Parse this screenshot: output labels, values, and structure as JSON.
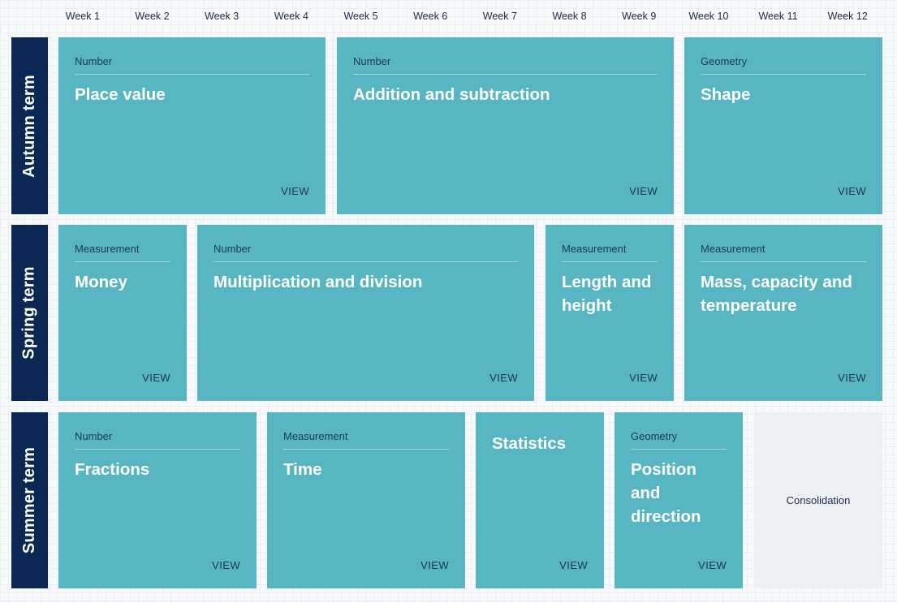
{
  "weeks": [
    "Week 1",
    "Week 2",
    "Week 3",
    "Week 4",
    "Week 5",
    "Week 6",
    "Week 7",
    "Week 8",
    "Week 9",
    "Week 10",
    "Week 11",
    "Week 12"
  ],
  "terms": [
    "Autumn term",
    "Spring term",
    "Summer term"
  ],
  "view_label": "VIEW",
  "autumn": [
    {
      "category": "Number",
      "title": "Place value"
    },
    {
      "category": "Number",
      "title": "Addition and subtraction"
    },
    {
      "category": "Geometry",
      "title": "Shape"
    }
  ],
  "spring": [
    {
      "category": "Measurement",
      "title": "Money"
    },
    {
      "category": "Number",
      "title": "Multiplication and division"
    },
    {
      "category": "Measurement",
      "title": "Length and height"
    },
    {
      "category": "Measurement",
      "title": "Mass, capacity and temperature"
    }
  ],
  "summer": [
    {
      "category": "Number",
      "title": "Fractions"
    },
    {
      "category": "Measurement",
      "title": "Time"
    },
    {
      "category": "",
      "title": "Statistics"
    },
    {
      "category": "Geometry",
      "title": "Position and direction"
    },
    {
      "category": "",
      "title": "Consolidation"
    }
  ],
  "colors": {
    "card": "#57b6c2",
    "term": "#0b2754",
    "consolidation": "#eef1f4"
  }
}
